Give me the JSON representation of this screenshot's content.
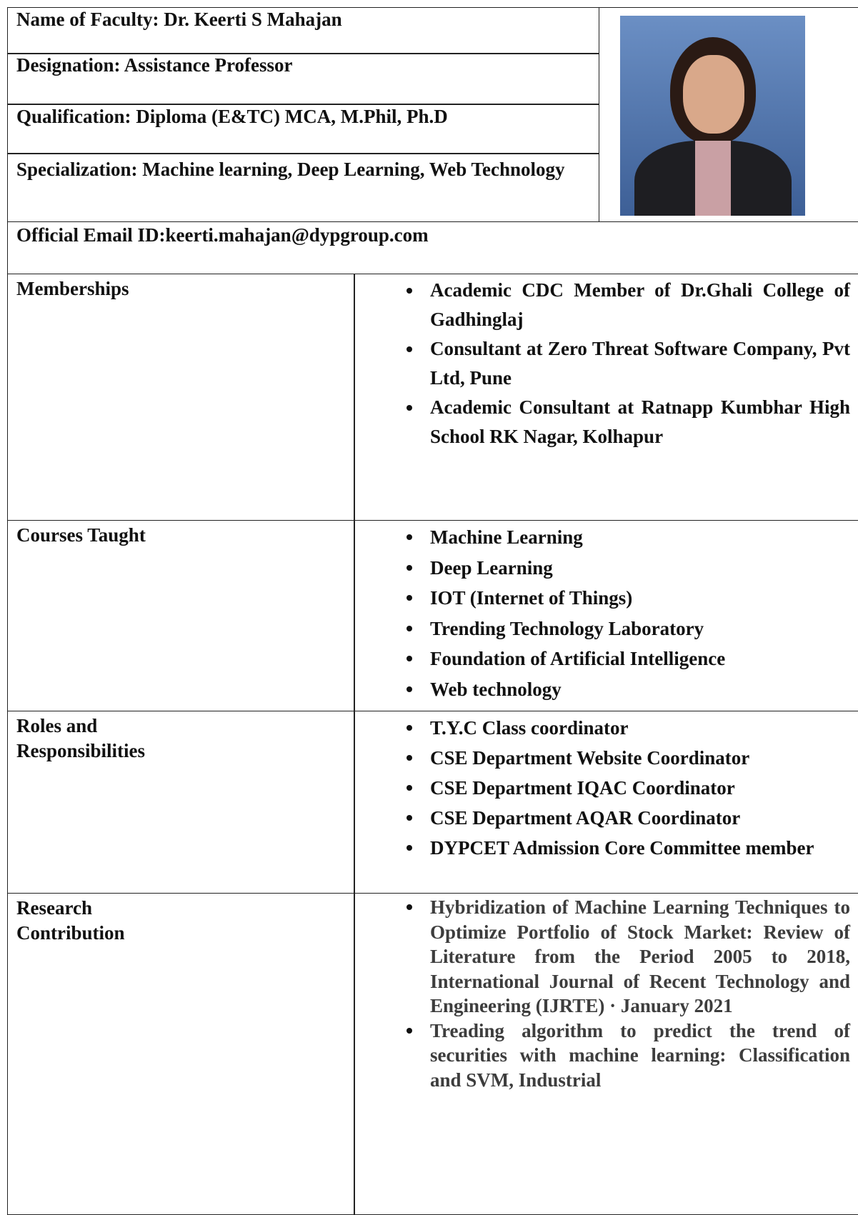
{
  "header": {
    "name": "Name of Faculty: Dr. Keerti S Mahajan",
    "designation": "Designation: Assistance Professor",
    "qualification": "Qualification: Diploma (E&TC) MCA, M.Phil, Ph.D",
    "specialization": "Specialization: Machine learning, Deep Learning, Web Technology",
    "email": "Official Email  ID:keerti.mahajan@dypgroup.com"
  },
  "sections": [
    {
      "label": [
        "Memberships"
      ],
      "items": [
        "Academic CDC Member of Dr.Ghali College of Gadhinglaj",
        "Consultant at Zero Threat Software Company, Pvt Ltd, Pune",
        "Academic Consultant at Ratnapp Kumbhar High School RK Nagar, Kolhapur"
      ]
    },
    {
      "label": [
        "Courses Taught"
      ],
      "items": [
        "Machine Learning",
        "Deep Learning",
        "IOT (Internet of Things)",
        "Trending Technology Laboratory",
        "Foundation of Artificial Intelligence",
        "Web technology"
      ]
    },
    {
      "label": [
        "Roles and",
        "Responsibilities"
      ],
      "items": [
        "T.Y.C Class coordinator",
        "CSE Department Website Coordinator",
        "CSE Department IQAC Coordinator",
        "CSE Department AQAR Coordinator",
        "DYPCET Admission Core Committee member"
      ]
    },
    {
      "label": [
        "Research",
        "Contribution"
      ],
      "items": [
        "Hybridization of Machine Learning Techniques to Optimize Portfolio of Stock Market: Review of Literature from the Period 2005 to 2018, International Journal of Recent Technology and Engineering (IJRTE) · January 2021",
        "Treading algorithm to predict the trend of securities with machine learning: Classification and SVM, Industrial"
      ]
    }
  ]
}
